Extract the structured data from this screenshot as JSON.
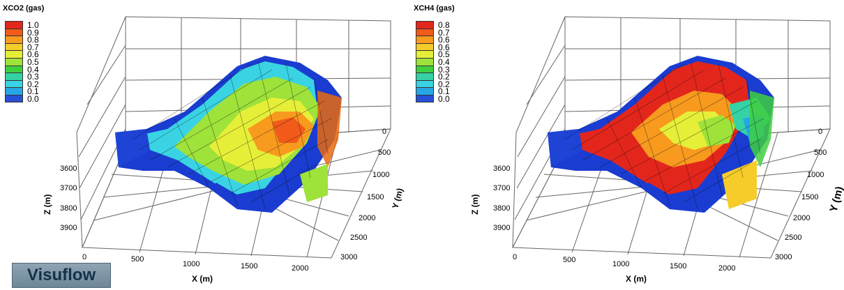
{
  "panels": [
    {
      "legend": {
        "title": "XCO2 (gas)",
        "labels": [
          "1.0",
          "0.9",
          "0.8",
          "0.7",
          "0.6",
          "0.5",
          "0.4",
          "0.3",
          "0.2",
          "0.1",
          "0.0"
        ]
      },
      "x_axis": {
        "title": "X (m)",
        "ticks": [
          "0",
          "500",
          "1000",
          "1500",
          "2000"
        ]
      },
      "y_axis": {
        "title": "Y (m)",
        "ticks": [
          "0",
          "500",
          "1000",
          "1500",
          "2000",
          "2500",
          "3000"
        ]
      },
      "z_axis": {
        "title": "Z (m)",
        "ticks": [
          "3600",
          "3700",
          "3800",
          "3900"
        ]
      },
      "surface_colors": [
        "#1a3cd0",
        "#1fa8e0",
        "#3fd6d8",
        "#7fd63a",
        "#c6e22a",
        "#f0e030",
        "#f0a020",
        "#e86a10"
      ]
    },
    {
      "legend": {
        "title": "XCH4 (gas)",
        "labels": [
          "0.8",
          "0.7",
          "0.6",
          "0.6",
          "0.5",
          "0.4",
          "0.3",
          "0.2",
          "0.2",
          "0.1",
          "0.0"
        ]
      },
      "x_axis": {
        "title": "X (m)",
        "ticks": [
          "0",
          "500",
          "1000",
          "1500",
          "2000"
        ]
      },
      "y_axis": {
        "title": "Y (m)",
        "ticks": [
          "0",
          "500",
          "1000",
          "1500",
          "2000",
          "2500",
          "3000"
        ]
      },
      "z_axis": {
        "title": "Z (m)",
        "ticks": [
          "3600",
          "3700",
          "3800",
          "3900"
        ]
      },
      "surface_colors": [
        "#d82018",
        "#e84018",
        "#f07820",
        "#e8d030",
        "#a0dc30",
        "#40d0c0",
        "#2080e0",
        "#1a3cd0"
      ]
    }
  ],
  "legend_colors": [
    "#e3261c",
    "#f25a1a",
    "#f79a1e",
    "#f5cc2a",
    "#e6ef38",
    "#9ee23a",
    "#3fcf3f",
    "#35d2a6",
    "#3ad3e3",
    "#25a6e6",
    "#2750d6"
  ],
  "branding": {
    "label": "Visuflow"
  }
}
